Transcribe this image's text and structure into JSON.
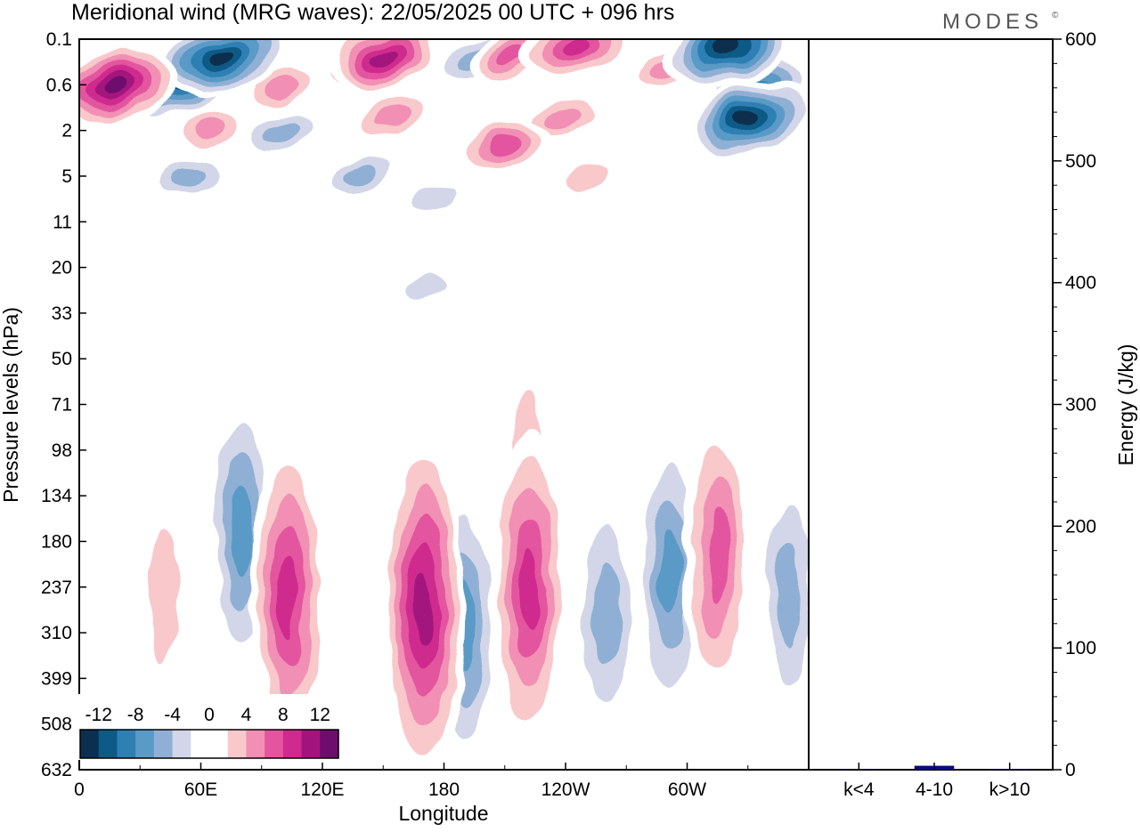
{
  "title": "Meridional wind (MRG waves):  22/05/2025  00 UTC  + 096 hrs",
  "logo_text": "MODES",
  "logo_mark": "©",
  "colors": {
    "neg3": "#0b4a6e",
    "neg2": "#2f7fb3",
    "neg1": "#8fb0d4",
    "neg0": "#d3d6e8",
    "pos0": "#f9c8cb",
    "pos1": "#f28fb4",
    "pos2": "#cf2a8e",
    "pos3": "#6e0d6e",
    "bar": "#0a0a8c"
  },
  "chart_data": [
    {
      "type": "heatmap",
      "title": "Meridional wind (MRG waves):  22/05/2025  00 UTC  + 096 hrs",
      "xlabel": "Longitude",
      "ylabel": "Pressure levels (hPa)",
      "x_ticks": [
        "0",
        "60E",
        "120E",
        "180",
        "120W",
        "60W"
      ],
      "x_tick_degrees": [
        0,
        60,
        120,
        180,
        240,
        300
      ],
      "xlim": [
        0,
        360
      ],
      "y_ticks": [
        "0.1",
        "0.6",
        "2",
        "5",
        "11",
        "20",
        "33",
        "50",
        "71",
        "98",
        "134",
        "180",
        "237",
        "310",
        "399",
        "508",
        "632"
      ],
      "colorbar": {
        "labels": [
          "-12",
          "-8",
          "-4",
          "0",
          "4",
          "8",
          "12"
        ],
        "label_values": [
          -12,
          -8,
          -4,
          0,
          4,
          8,
          12
        ],
        "levels": [
          -14,
          -12,
          -10,
          -8,
          -6,
          -4,
          -2,
          0,
          2,
          4,
          6,
          8,
          10,
          12,
          14
        ],
        "colors": [
          "#0b2f4e",
          "#0e5a86",
          "#2f7fb3",
          "#5a9ac6",
          "#8fb0d4",
          "#d3d6e8",
          "#ffffff",
          "#ffffff",
          "#f9c8cb",
          "#f28fb4",
          "#e3559e",
          "#cf2a8e",
          "#a3137e",
          "#6e0d6e"
        ]
      },
      "features": [
        {
          "lon": 18,
          "level": 0.6,
          "value": 14
        },
        {
          "lon": 50,
          "level": 0.6,
          "value": -12
        },
        {
          "lon": 70,
          "level": 0.3,
          "value": -13
        },
        {
          "lon": 100,
          "level": 0.6,
          "value": 6
        },
        {
          "lon": 140,
          "level": 0.4,
          "value": 7
        },
        {
          "lon": 150,
          "level": 0.3,
          "value": 12
        },
        {
          "lon": 195,
          "level": 0.3,
          "value": -6
        },
        {
          "lon": 215,
          "level": 0.3,
          "value": 8
        },
        {
          "lon": 245,
          "level": 0.2,
          "value": 9
        },
        {
          "lon": 290,
          "level": 0.4,
          "value": 5
        },
        {
          "lon": 320,
          "level": 0.2,
          "value": -13
        },
        {
          "lon": 335,
          "level": 0.6,
          "value": -10
        },
        {
          "lon": 330,
          "level": 1.6,
          "value": -13
        },
        {
          "lon": 65,
          "level": 2,
          "value": 5
        },
        {
          "lon": 100,
          "level": 2,
          "value": -5
        },
        {
          "lon": 155,
          "level": 1.5,
          "value": 6
        },
        {
          "lon": 240,
          "level": 1.6,
          "value": 6
        },
        {
          "lon": 210,
          "level": 3,
          "value": 8
        },
        {
          "lon": 55,
          "level": 5,
          "value": -5
        },
        {
          "lon": 140,
          "level": 5,
          "value": -5
        },
        {
          "lon": 175,
          "level": 8,
          "value": -4
        },
        {
          "lon": 250,
          "level": 5,
          "value": 4
        },
        {
          "lon": 172,
          "level": 25,
          "value": -3
        },
        {
          "lon": 220,
          "level": 100,
          "value": 3
        },
        {
          "lon": 80,
          "level": 170,
          "value": -8
        },
        {
          "lon": 103,
          "level": 250,
          "value": 10
        },
        {
          "lon": 170,
          "level": 270,
          "value": 12
        },
        {
          "lon": 190,
          "level": 300,
          "value": -7
        },
        {
          "lon": 222,
          "level": 240,
          "value": 10
        },
        {
          "lon": 260,
          "level": 280,
          "value": -6
        },
        {
          "lon": 292,
          "level": 220,
          "value": -7
        },
        {
          "lon": 315,
          "level": 200,
          "value": 7
        },
        {
          "lon": 350,
          "level": 250,
          "value": -6
        },
        {
          "lon": 42,
          "level": 250,
          "value": 4
        }
      ]
    },
    {
      "type": "bar",
      "ylabel": "Energy (J/kg)",
      "categories": [
        "k<4",
        "4-10",
        "k>10"
      ],
      "values": [
        0.5,
        3,
        0.5
      ],
      "ylim": [
        0,
        600
      ],
      "y_ticks": [
        "0",
        "100",
        "200",
        "300",
        "400",
        "500",
        "600"
      ]
    }
  ]
}
